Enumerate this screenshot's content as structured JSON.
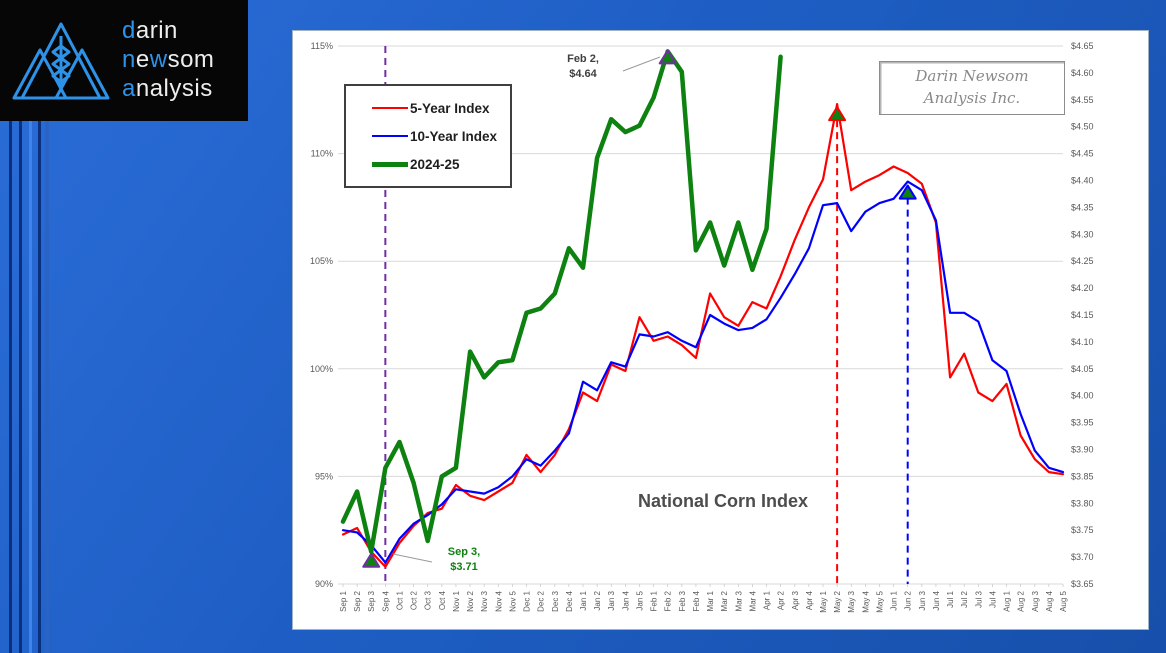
{
  "logo": {
    "background": "#060606",
    "brand_accent": "#2e93e8",
    "text_color": "#ededed",
    "emblem": "three-peaks-wheat",
    "lines": [
      {
        "segments": [
          {
            "text": "d",
            "accent": true
          },
          {
            "text": "arin",
            "accent": false
          }
        ]
      },
      {
        "segments": [
          {
            "text": "n",
            "accent": true
          },
          {
            "text": "e",
            "accent": false
          },
          {
            "text": "w",
            "accent": true
          },
          {
            "text": "som",
            "accent": false
          }
        ]
      },
      {
        "segments": [
          {
            "text": "a",
            "accent": true
          },
          {
            "text": "nalysis",
            "accent": false
          }
        ]
      }
    ]
  },
  "watermark": {
    "line1": "Darin Newsom",
    "line2": "Analysis Inc."
  },
  "chart_data": {
    "type": "line",
    "title": "National Corn Index",
    "grid": "horizontal",
    "legend_position": "top-left",
    "x_categories": [
      "Sep 1",
      "Sep 2",
      "Sep 3",
      "Sep 4",
      "Oct 1",
      "Oct 2",
      "Oct 3",
      "Oct 4",
      "Nov 1",
      "Nov 2",
      "Nov 3",
      "Nov 4",
      "Nov 5",
      "Dec 1",
      "Dec 2",
      "Dec 3",
      "Dec 4",
      "Jan 1",
      "Jan 2",
      "Jan 3",
      "Jan 4",
      "Jan 5",
      "Feb 1",
      "Feb 2",
      "Feb 3",
      "Feb 4",
      "Mar 1",
      "Mar 2",
      "Mar 3",
      "Mar 4",
      "Apr 1",
      "Apr 2",
      "Apr 3",
      "Apr 4",
      "May 1",
      "May 2",
      "May 3",
      "May 4",
      "May 5",
      "Jun 1",
      "Jun 2",
      "Jun 3",
      "Jun 4",
      "Jul 1",
      "Jul 2",
      "Jul 3",
      "Jul 4",
      "Aug 1",
      "Aug 2",
      "Aug 3",
      "Aug 4",
      "Aug 5"
    ],
    "y_left_axis": {
      "unit": "percent",
      "min": 90,
      "max": 115,
      "tick_step": 5,
      "tick_labels": [
        "115%",
        "110%",
        "105%",
        "100%",
        "95%",
        "90%"
      ]
    },
    "y_right_axis": {
      "unit": "USD",
      "min": 3.65,
      "max": 4.65,
      "tick_step": 0.05,
      "tick_labels": [
        "$4.65",
        "$4.60",
        "$4.55",
        "$4.50",
        "$4.45",
        "$4.40",
        "$4.35",
        "$4.30",
        "$4.25",
        "$4.20",
        "$4.15",
        "$4.10",
        "$4.05",
        "$4.00",
        "$3.95",
        "$3.90",
        "$3.85",
        "$3.80",
        "$3.75",
        "$3.70",
        "$3.65"
      ]
    },
    "series": [
      {
        "name": "5-Year Index",
        "color": "#FF0000",
        "line_width": 2.2,
        "values": [
          92.3,
          92.6,
          91.5,
          90.8,
          91.9,
          92.7,
          93.3,
          93.5,
          94.6,
          94.1,
          93.9,
          94.3,
          94.7,
          96.0,
          95.2,
          96.0,
          97.2,
          98.9,
          98.5,
          100.2,
          99.9,
          102.4,
          101.3,
          101.5,
          101.1,
          100.5,
          103.5,
          102.4,
          102.0,
          103.1,
          102.8,
          104.3,
          106.0,
          107.5,
          108.8,
          112.3,
          108.3,
          108.7,
          109.0,
          109.4,
          109.1,
          108.6,
          106.8,
          99.6,
          100.7,
          98.9,
          98.5,
          99.3,
          96.9,
          95.8,
          95.2,
          95.1
        ]
      },
      {
        "name": "10-Year Index",
        "color": "#0000FF",
        "line_width": 2.2,
        "values": [
          92.5,
          92.4,
          91.8,
          91.0,
          92.1,
          92.8,
          93.2,
          93.7,
          94.4,
          94.3,
          94.2,
          94.5,
          95.0,
          95.8,
          95.5,
          96.2,
          97.0,
          99.4,
          99.0,
          100.3,
          100.1,
          101.6,
          101.5,
          101.7,
          101.3,
          101.0,
          102.5,
          102.1,
          101.8,
          101.9,
          102.3,
          103.3,
          104.4,
          105.6,
          107.6,
          107.7,
          106.4,
          107.3,
          107.7,
          107.9,
          108.7,
          108.3,
          106.9,
          102.6,
          102.6,
          102.2,
          100.4,
          99.9,
          97.9,
          96.2,
          95.4,
          95.2
        ]
      },
      {
        "name": "2024-25",
        "color": "#0E8210",
        "line_width": 4.5,
        "values": [
          92.9,
          94.3,
          91.5,
          95.4,
          96.6,
          94.7,
          92.0,
          95.0,
          95.4,
          100.8,
          99.6,
          100.3,
          100.4,
          102.6,
          102.8,
          103.5,
          105.6,
          104.7,
          109.8,
          111.6,
          111.0,
          111.3,
          112.6,
          114.75,
          113.8,
          105.5,
          106.8,
          104.8,
          106.8,
          104.6,
          106.5,
          114.5,
          null,
          null,
          null,
          null,
          null,
          null,
          null,
          null,
          null,
          null,
          null,
          null,
          null,
          null,
          null,
          null,
          null,
          null,
          null,
          null
        ]
      }
    ],
    "markers": [
      {
        "x": "Sep 3",
        "value": 91.5,
        "fill": "#0E8210",
        "outline": "#7030A0"
      },
      {
        "x": "Feb 2",
        "value": 114.75,
        "fill": "#0E8210",
        "outline": "#7030A0"
      },
      {
        "x": "May 2",
        "value": 112.3,
        "fill": "#0E8210",
        "outline": "#FF0000"
      },
      {
        "x": "Jun 2",
        "value": 108.7,
        "fill": "#0E8210",
        "outline": "#0000FF"
      }
    ],
    "event_lines": [
      {
        "x": "Sep 4",
        "color": "#7030A0",
        "span": "full"
      },
      {
        "x": "May 2",
        "color": "#FF0000",
        "span": "below-marker",
        "top_value": 112.3
      },
      {
        "x": "Jun 2",
        "color": "#0000FF",
        "span": "below-marker",
        "top_value": 108.7
      }
    ],
    "annotations": [
      {
        "id": "feb-high",
        "line1": "Feb 2,",
        "line2": "$4.64"
      },
      {
        "id": "sep-low",
        "line1": "Sep 3,",
        "line2": "$3.71"
      }
    ]
  }
}
